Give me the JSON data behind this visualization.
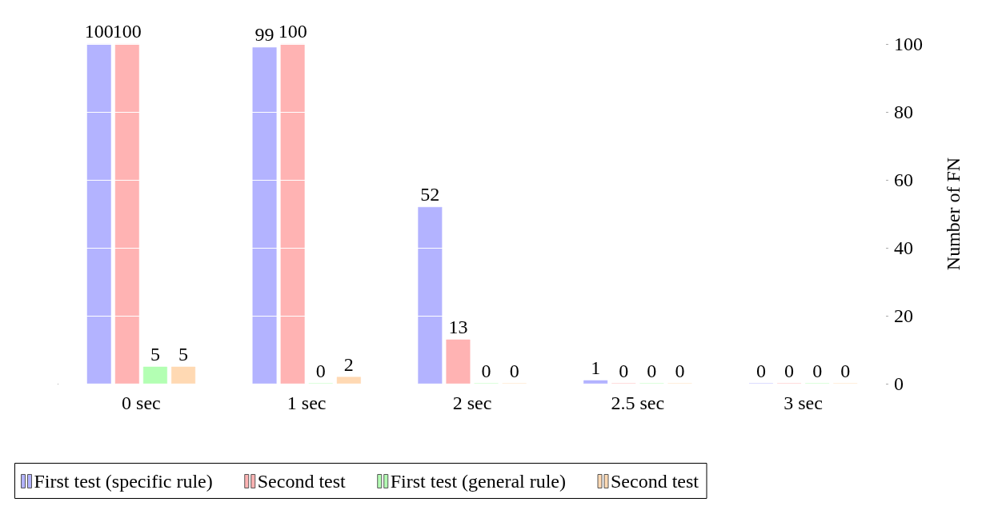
{
  "chart_data": {
    "type": "bar",
    "ylabel": "Number of FN",
    "categories": [
      "0 sec",
      "1 sec",
      "2 sec",
      "2.5 sec",
      "3 sec"
    ],
    "series": [
      {
        "name": "First test (specific rule)",
        "color": "#b3b3ff",
        "values": [
          100,
          99,
          52,
          1,
          0
        ]
      },
      {
        "name": "Second test",
        "color": "#ffb3b3",
        "values": [
          100,
          100,
          13,
          0,
          0
        ]
      },
      {
        "name": "First test (general rule)",
        "color": "#b3ffb3",
        "values": [
          5,
          0,
          0,
          0,
          0
        ]
      },
      {
        "name": "Second test",
        "color": "#ffd9b3",
        "values": [
          5,
          2,
          0,
          0,
          0
        ]
      }
    ],
    "ylim": [
      0,
      100
    ],
    "yticks": [
      0,
      20,
      40,
      60,
      80,
      100
    ],
    "grid": "y",
    "legend": "bottom",
    "data_labels": true
  }
}
